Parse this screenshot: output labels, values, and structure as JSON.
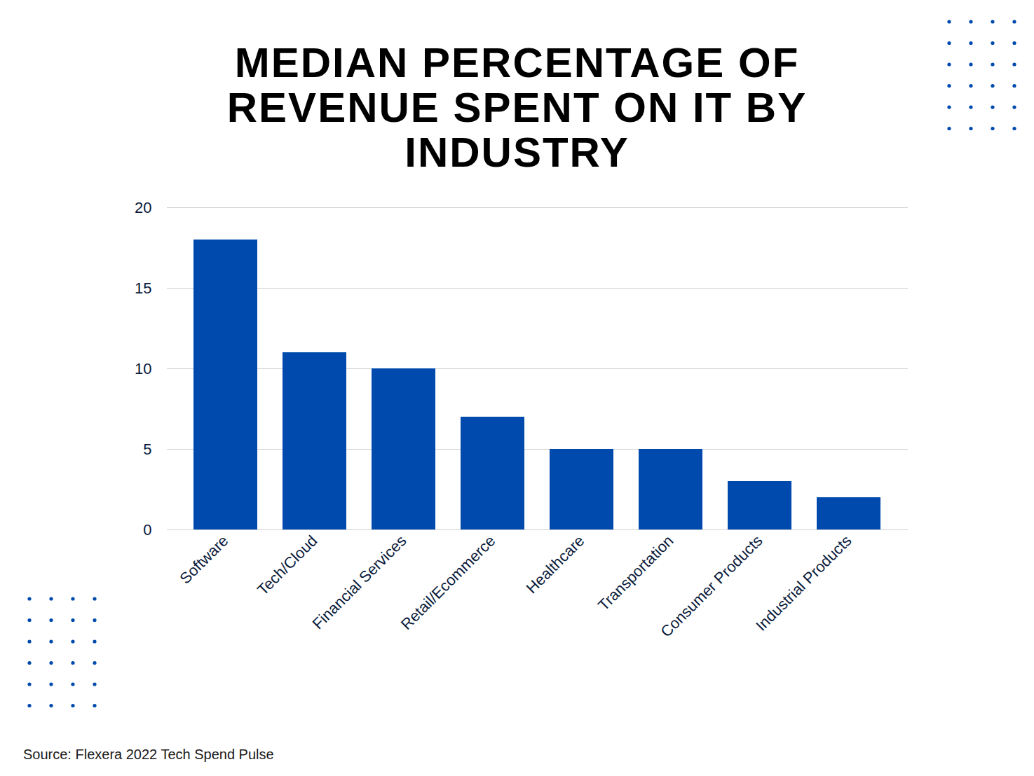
{
  "chart_data": {
    "type": "bar",
    "title": "MEDIAN PERCENTAGE OF REVENUE SPENT ON IT BY INDUSTRY",
    "caption": "Source: Flexera 2022 Tech Spend Pulse",
    "categories": [
      "Software",
      "Tech/Cloud",
      "Financial Services",
      "Retail/Ecommerce",
      "Healthcare",
      "Transportation",
      "Consumer Products",
      "Industrial Products"
    ],
    "values": [
      18,
      11,
      10,
      7,
      5,
      5,
      3,
      2
    ],
    "color": "#004aad",
    "ylim": [
      0,
      20
    ],
    "yticks": [
      0,
      5,
      10,
      15,
      20
    ],
    "grid": true
  }
}
